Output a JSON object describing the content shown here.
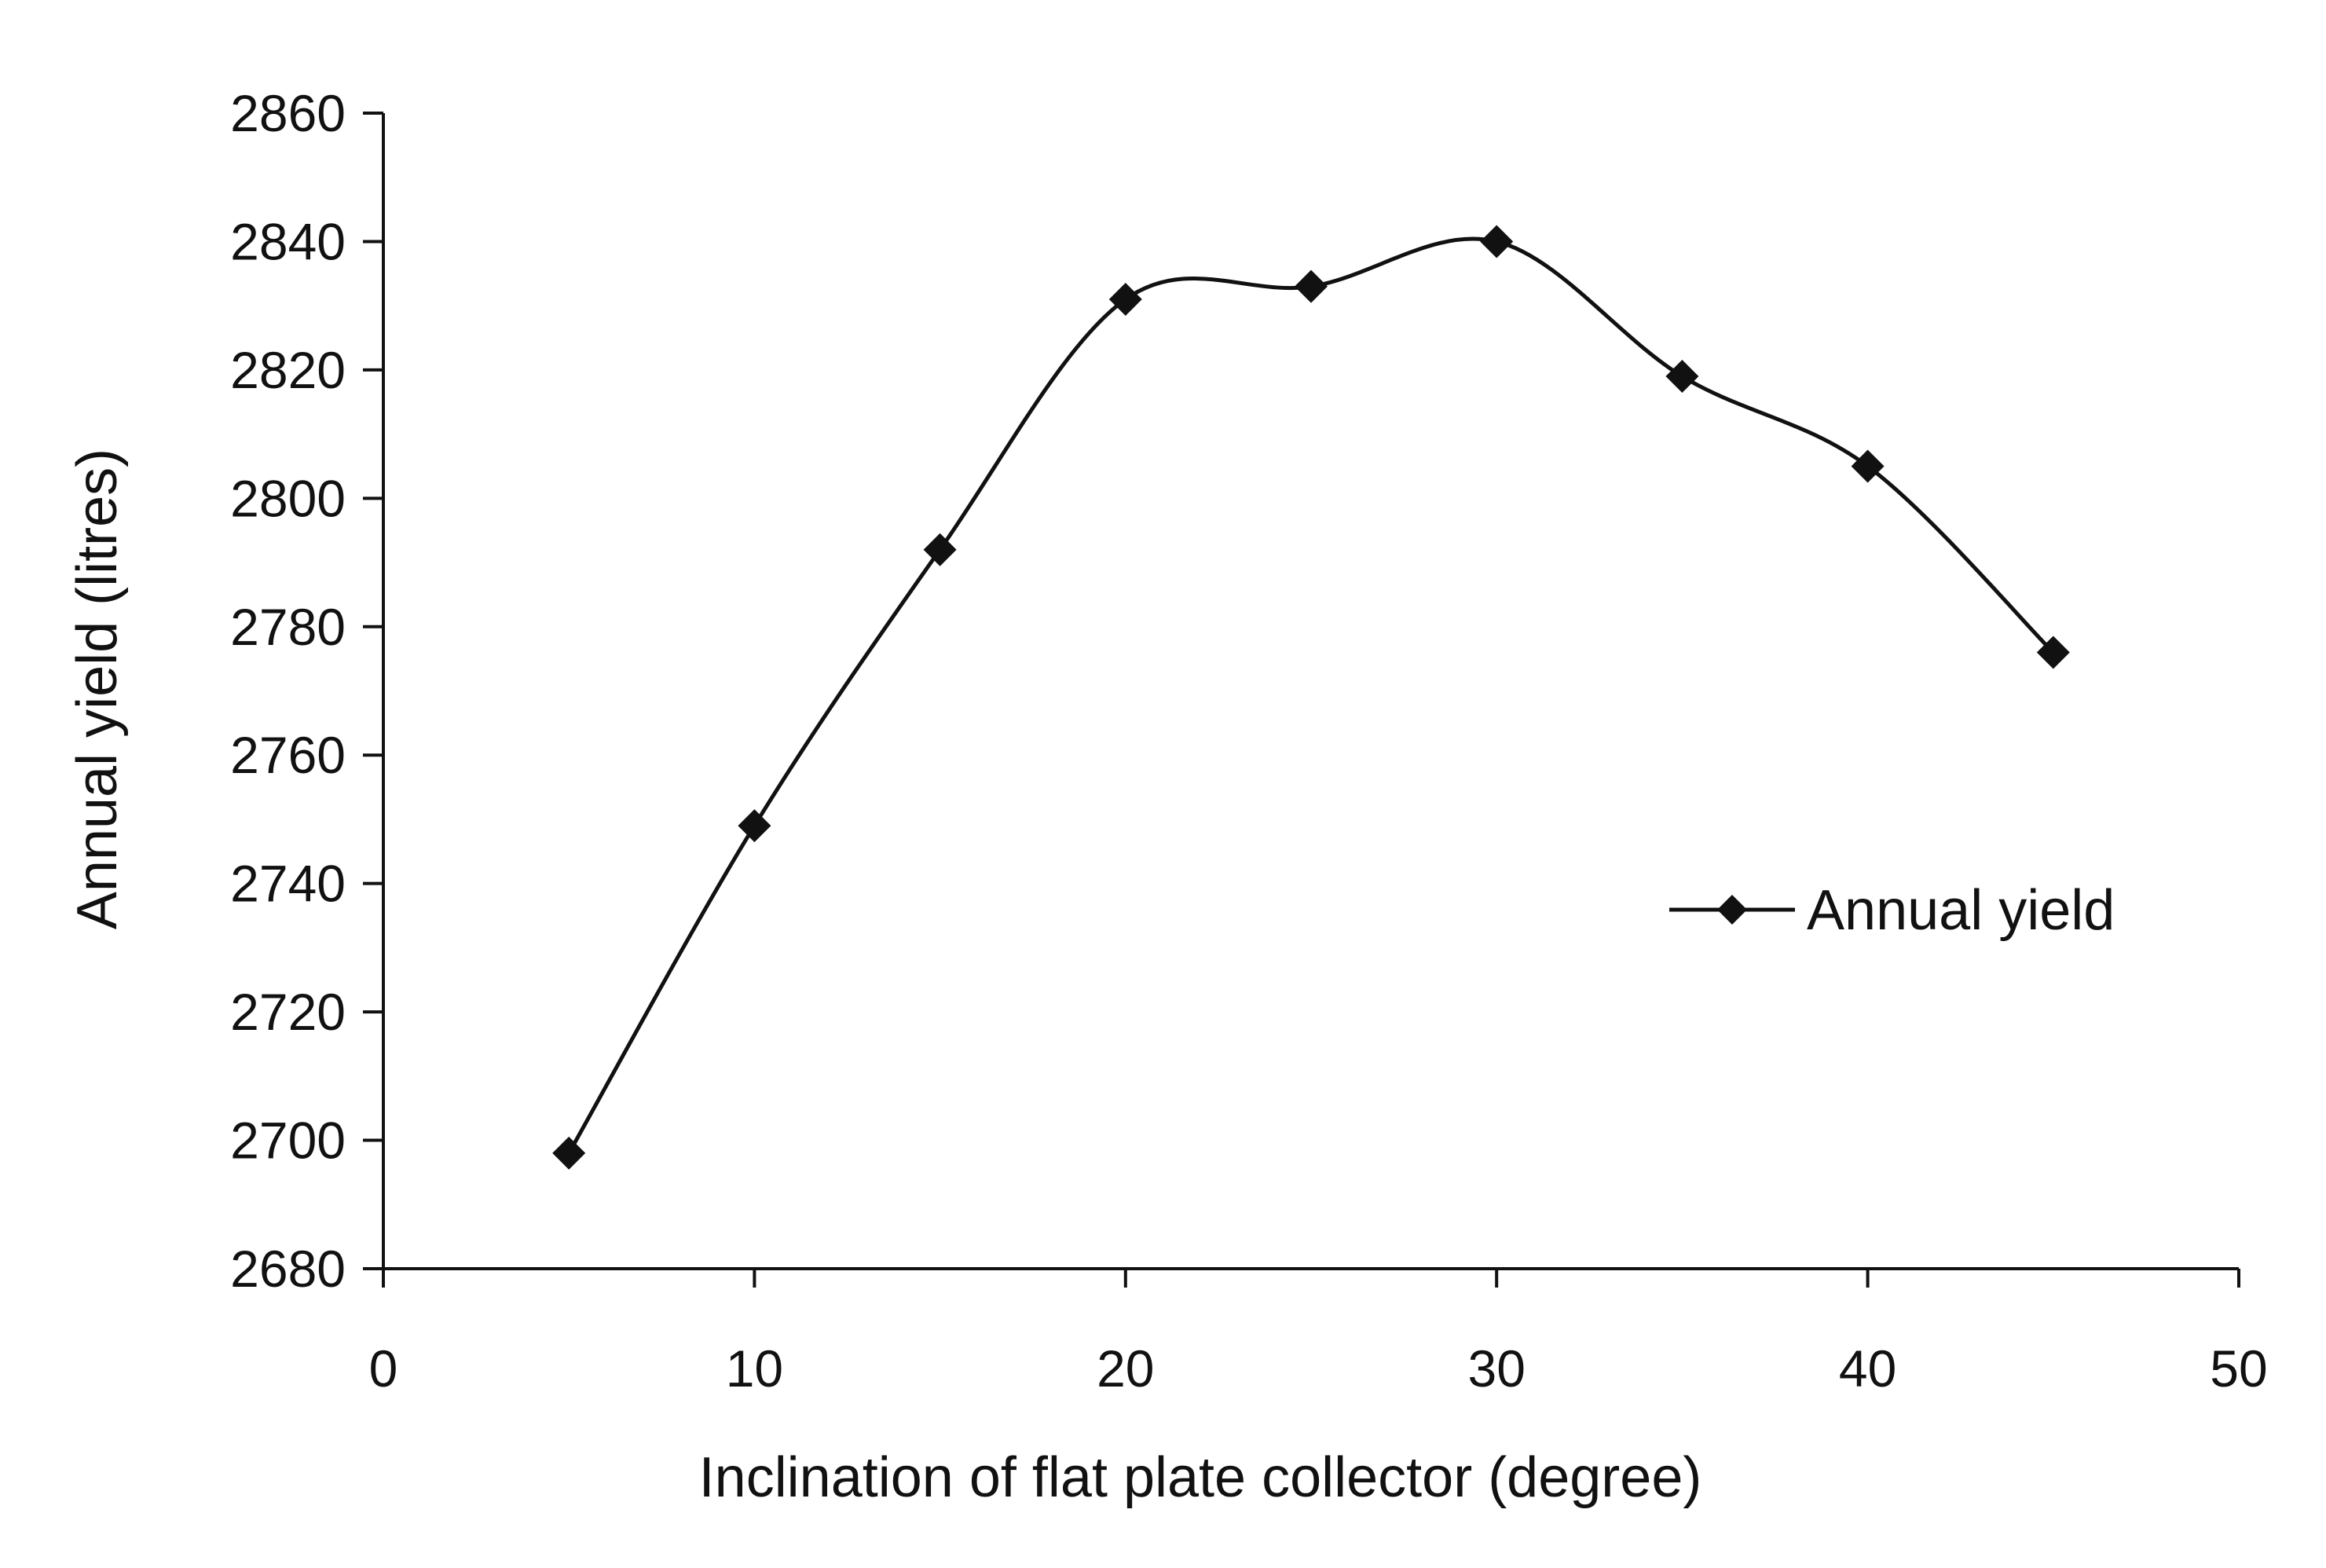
{
  "chart_data": {
    "type": "line",
    "title": "",
    "xlabel": "Inclination of flat plate collector (degree)",
    "ylabel": "Annual yield (litres)",
    "xlim": [
      0,
      50
    ],
    "ylim": [
      2680,
      2860
    ],
    "xticks": [
      0,
      10,
      20,
      30,
      40,
      50
    ],
    "yticks": [
      2680,
      2700,
      2720,
      2740,
      2760,
      2780,
      2800,
      2820,
      2840,
      2860
    ],
    "grid": false,
    "legend_position": "center-right",
    "series": [
      {
        "name": "Annual yield",
        "color": "#111111",
        "marker": "diamond",
        "smooth": true,
        "x": [
          5,
          10,
          15,
          20,
          25,
          30,
          35,
          40,
          45
        ],
        "y": [
          2698,
          2749,
          2792,
          2831,
          2833,
          2840,
          2819,
          2805,
          2776
        ]
      }
    ]
  }
}
